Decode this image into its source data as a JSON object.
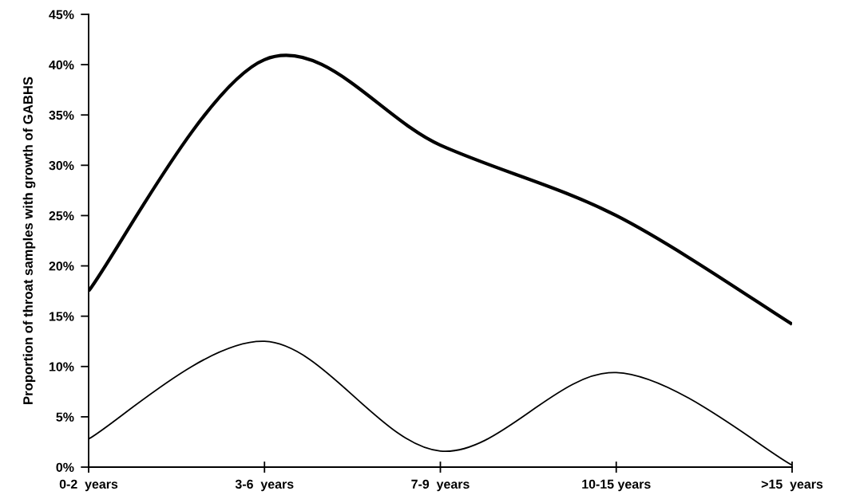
{
  "chart_data": {
    "type": "line",
    "ylabel": "Proportion of throat samples with growth of GABHS",
    "categories": [
      "0-2  years",
      "3-6  years",
      "7-9  years",
      "10-15 years",
      ">15  years"
    ],
    "series": [
      {
        "color": "#000000",
        "values": [
          17.5,
          40.5,
          32,
          25,
          14.2
        ]
      },
      {
        "color": "#000000",
        "values": [
          2.8,
          12.5,
          1.6,
          9.4,
          0.2
        ]
      }
    ],
    "ylim": [
      0,
      45
    ],
    "yticks": [
      {
        "value": 0,
        "label": "0%"
      },
      {
        "value": 5,
        "label": "5%"
      },
      {
        "value": 10,
        "label": "10%"
      },
      {
        "value": 15,
        "label": "15%"
      },
      {
        "value": 20,
        "label": "20%"
      },
      {
        "value": 25,
        "label": "25%"
      },
      {
        "value": 30,
        "label": "30%"
      },
      {
        "value": 35,
        "label": "35%"
      },
      {
        "value": 40,
        "label": "40%"
      },
      {
        "value": 45,
        "label": "45%"
      }
    ],
    "grid": false,
    "marker": "none",
    "line_style": "solid"
  }
}
